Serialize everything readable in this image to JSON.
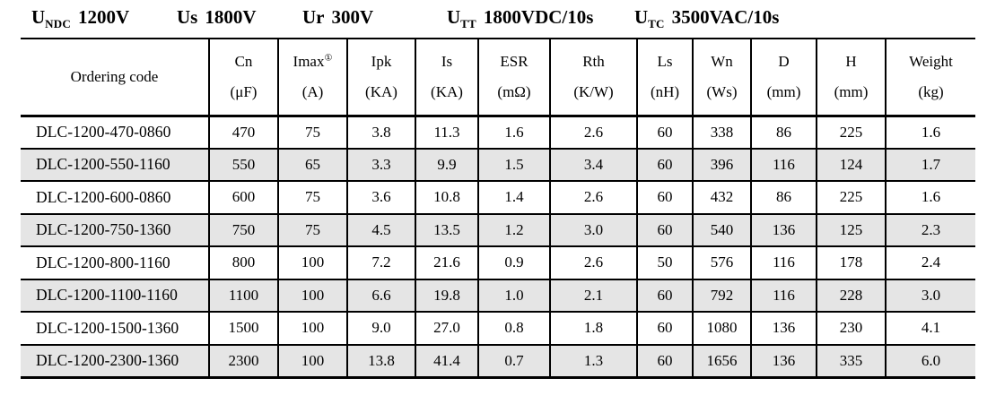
{
  "header": {
    "specs": [
      {
        "symbol": "U",
        "subscript": "NDC",
        "value": "1200V"
      },
      {
        "symbol": "Us",
        "subscript": "",
        "value": "1800V"
      },
      {
        "symbol": "Ur",
        "subscript": "",
        "value": "300V"
      },
      {
        "symbol": "U",
        "subscript": "TT",
        "value": "1800VDC/10s"
      },
      {
        "symbol": "U",
        "subscript": "TC",
        "value": "3500VAC/10s"
      }
    ]
  },
  "table": {
    "striped_color": "#e5e5e5",
    "columns": [
      {
        "id": "ordering-code",
        "name": "Ordering code",
        "unit": "",
        "sup": ""
      },
      {
        "id": "cn",
        "name": "Cn",
        "unit": "(μF)",
        "sup": ""
      },
      {
        "id": "imax",
        "name": "Imax",
        "unit": "(A)",
        "sup": "①"
      },
      {
        "id": "ipk",
        "name": "Ipk",
        "unit": "(KA)",
        "sup": ""
      },
      {
        "id": "is",
        "name": "Is",
        "unit": "(KA)",
        "sup": ""
      },
      {
        "id": "esr",
        "name": "ESR",
        "unit": "(mΩ)",
        "sup": ""
      },
      {
        "id": "rth",
        "name": "Rth",
        "unit": "(K/W)",
        "sup": ""
      },
      {
        "id": "ls",
        "name": "Ls",
        "unit": "(nH)",
        "sup": ""
      },
      {
        "id": "wn",
        "name": "Wn",
        "unit": "(Ws)",
        "sup": ""
      },
      {
        "id": "d",
        "name": "D",
        "unit": "(mm)",
        "sup": ""
      },
      {
        "id": "h",
        "name": "H",
        "unit": "(mm)",
        "sup": ""
      },
      {
        "id": "weight",
        "name": "Weight",
        "unit": "(kg)",
        "sup": ""
      }
    ],
    "rows": [
      [
        "DLC-1200-470-0860",
        "470",
        "75",
        "3.8",
        "11.3",
        "1.6",
        "2.6",
        "60",
        "338",
        "86",
        "225",
        "1.6"
      ],
      [
        "DLC-1200-550-1160",
        "550",
        "65",
        "3.3",
        "9.9",
        "1.5",
        "3.4",
        "60",
        "396",
        "116",
        "124",
        "1.7"
      ],
      [
        "DLC-1200-600-0860",
        "600",
        "75",
        "3.6",
        "10.8",
        "1.4",
        "2.6",
        "60",
        "432",
        "86",
        "225",
        "1.6"
      ],
      [
        "DLC-1200-750-1360",
        "750",
        "75",
        "4.5",
        "13.5",
        "1.2",
        "3.0",
        "60",
        "540",
        "136",
        "125",
        "2.3"
      ],
      [
        "DLC-1200-800-1160",
        "800",
        "100",
        "7.2",
        "21.6",
        "0.9",
        "2.6",
        "50",
        "576",
        "116",
        "178",
        "2.4"
      ],
      [
        "DLC-1200-1100-1160",
        "1100",
        "100",
        "6.6",
        "19.8",
        "1.0",
        "2.1",
        "60",
        "792",
        "116",
        "228",
        "3.0"
      ],
      [
        "DLC-1200-1500-1360",
        "1500",
        "100",
        "9.0",
        "27.0",
        "0.8",
        "1.8",
        "60",
        "1080",
        "136",
        "230",
        "4.1"
      ],
      [
        "DLC-1200-2300-1360",
        "2300",
        "100",
        "13.8",
        "41.4",
        "0.7",
        "1.3",
        "60",
        "1656",
        "136",
        "335",
        "6.0"
      ]
    ]
  }
}
